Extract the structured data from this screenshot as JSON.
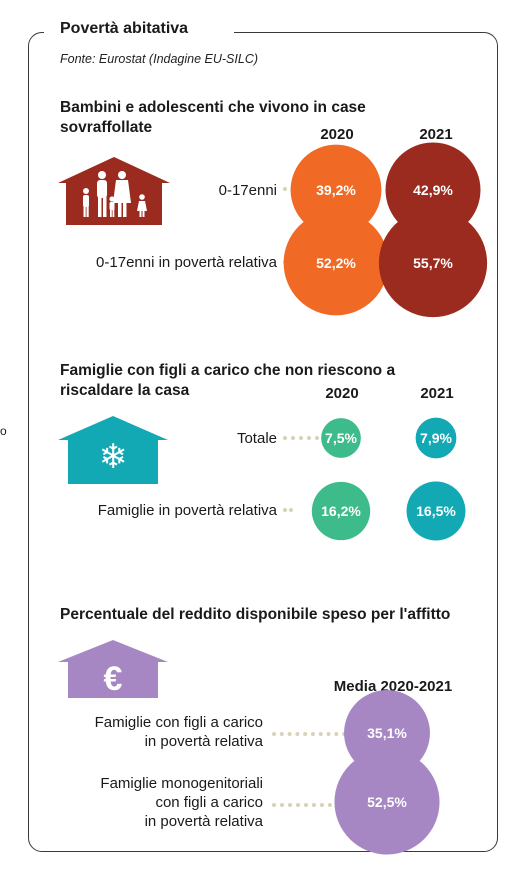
{
  "header": {
    "title": "Povertà abitativa",
    "source": "Fonte: Eurostat (Indagine EU-SILC)",
    "stray_text": "o"
  },
  "colors": {
    "orange": "#f06a26",
    "darkred": "#9b2a1f",
    "green": "#3dbb8b",
    "teal": "#12a8b4",
    "purple": "#a687c4",
    "dots": "#d9d2b8"
  },
  "chart_data": [
    {
      "type": "bubble",
      "title": "Bambini e adolescenti che vivono in case sovraffollate",
      "icon": "family-house-icon",
      "years": [
        "2020",
        "2021"
      ],
      "rows": [
        {
          "label": "0-17enni",
          "values": [
            39.2,
            42.9
          ],
          "labels": [
            "39,2%",
            "42,9%"
          ]
        },
        {
          "label": "0-17enni in povertà relativa",
          "values": [
            52.2,
            55.7
          ],
          "labels": [
            "52,2%",
            "55,7%"
          ]
        }
      ],
      "series_colors": [
        "#f06a26",
        "#9b2a1f"
      ]
    },
    {
      "type": "bubble",
      "title": "Famiglie con figli a carico che non riescono a riscaldare la casa",
      "icon": "snowflake-house-icon",
      "years": [
        "2020",
        "2021"
      ],
      "rows": [
        {
          "label": "Totale",
          "values": [
            7.5,
            7.9
          ],
          "labels": [
            "7,5%",
            "7,9%"
          ]
        },
        {
          "label": "Famiglie in povertà relativa",
          "values": [
            16.2,
            16.5
          ],
          "labels": [
            "16,2%",
            "16,5%"
          ]
        }
      ],
      "series_colors": [
        "#3dbb8b",
        "#12a8b4"
      ]
    },
    {
      "type": "bubble",
      "title": "Percentuale del reddito disponibile speso per l'affitto",
      "icon": "euro-house-icon",
      "years": [
        "Media 2020-2021"
      ],
      "rows": [
        {
          "label": "Famiglie con figli a carico in povertà relativa",
          "values": [
            35.1
          ],
          "labels": [
            "35,1%"
          ]
        },
        {
          "label": "Famiglie monogenitoriali con figli a carico in povertà relativa",
          "values": [
            52.5
          ],
          "labels": [
            "52,5%"
          ]
        }
      ],
      "series_colors": [
        "#a687c4"
      ]
    }
  ],
  "text": {
    "s1_title_l1": "Bambini e adolescenti che vivono in case",
    "s1_title_l2": "sovraffollate",
    "s1_row1": "0-17enni",
    "s1_row2": "0-17enni in povertà relativa",
    "s2_title_l1": "Famiglie con figli a carico che non riescono a",
    "s2_title_l2": "riscaldare la casa",
    "s2_row1": "Totale",
    "s2_row2": "Famiglie in povertà relativa",
    "s3_title": "Percentuale del reddito disponibile speso per l'affitto",
    "s3_year": "Media 2020-2021",
    "s3_row1_l1": "Famiglie con figli a carico",
    "s3_row1_l2": "in povertà relativa",
    "s3_row2_l1": "Famiglie monogenitoriali",
    "s3_row2_l2": "con figli a carico",
    "s3_row2_l3": "in povertà relativa",
    "euro_symbol": "€",
    "snowflake_symbol": "❄",
    "year_2020": "2020",
    "year_2021": "2021"
  }
}
